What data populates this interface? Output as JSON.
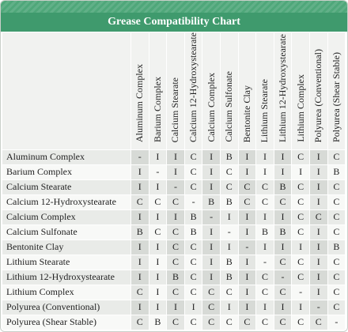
{
  "title": "Grease Compatibility Chart",
  "columns": [
    "Aluminum Complex",
    "Barium Complex",
    "Calcium Stearate",
    "Calcium 12-Hydroxystearate",
    "Calcium Complex",
    "Calcium Sulfonate",
    "Bentonite Clay",
    "Lithium Stearate",
    "Lithium 12-Hydroxystearate",
    "Lithium Complex",
    "Polyurea (Conventional)",
    "Polyurea (Shear Stable)"
  ],
  "rows": [
    {
      "label": "Aluminum Complex",
      "cells": [
        "-",
        "I",
        "I",
        "C",
        "I",
        "B",
        "I",
        "I",
        "I",
        "C",
        "I",
        "C"
      ]
    },
    {
      "label": "Barium Complex",
      "cells": [
        "I",
        "-",
        "I",
        "C",
        "I",
        "C",
        "I",
        "I",
        "I",
        "I",
        "I",
        "B"
      ]
    },
    {
      "label": "Calcium Stearate",
      "cells": [
        "I",
        "I",
        "-",
        "C",
        "I",
        "C",
        "C",
        "C",
        "B",
        "C",
        "I",
        "C"
      ]
    },
    {
      "label": "Calcium 12-Hydroxystearate",
      "cells": [
        "C",
        "C",
        "C",
        "-",
        "B",
        "B",
        "C",
        "C",
        "C",
        "C",
        "I",
        "C"
      ]
    },
    {
      "label": "Calcium Complex",
      "cells": [
        "I",
        "I",
        "I",
        "B",
        "-",
        "I",
        "I",
        "I",
        "I",
        "C",
        "C",
        "C"
      ]
    },
    {
      "label": "Calcium Sulfonate",
      "cells": [
        "B",
        "C",
        "C",
        "B",
        "I",
        "-",
        "I",
        "B",
        "B",
        "C",
        "I",
        "C"
      ]
    },
    {
      "label": "Bentonite Clay",
      "cells": [
        "I",
        "I",
        "C",
        "C",
        "I",
        "I",
        "-",
        "I",
        "I",
        "I",
        "I",
        "B"
      ]
    },
    {
      "label": "Lithium Stearate",
      "cells": [
        "I",
        "I",
        "C",
        "C",
        "I",
        "B",
        "I",
        "-",
        "C",
        "C",
        "I",
        "C"
      ]
    },
    {
      "label": "Lithium 12-Hydroxystearate",
      "cells": [
        "I",
        "I",
        "B",
        "C",
        "I",
        "B",
        "I",
        "C",
        "-",
        "C",
        "I",
        "C"
      ]
    },
    {
      "label": "Lithium Complex",
      "cells": [
        "C",
        "I",
        "C",
        "C",
        "C",
        "C",
        "I",
        "C",
        "C",
        "-",
        "I",
        "C"
      ]
    },
    {
      "label": "Polyurea (Conventional)",
      "cells": [
        "I",
        "I",
        "I",
        "I",
        "C",
        "I",
        "I",
        "I",
        "I",
        "I",
        "-",
        "C"
      ]
    },
    {
      "label": "Polyurea (Shear Stable)",
      "cells": [
        "C",
        "B",
        "C",
        "C",
        "C",
        "C",
        "C",
        "C",
        "C",
        "C",
        "C",
        "-"
      ]
    }
  ]
}
